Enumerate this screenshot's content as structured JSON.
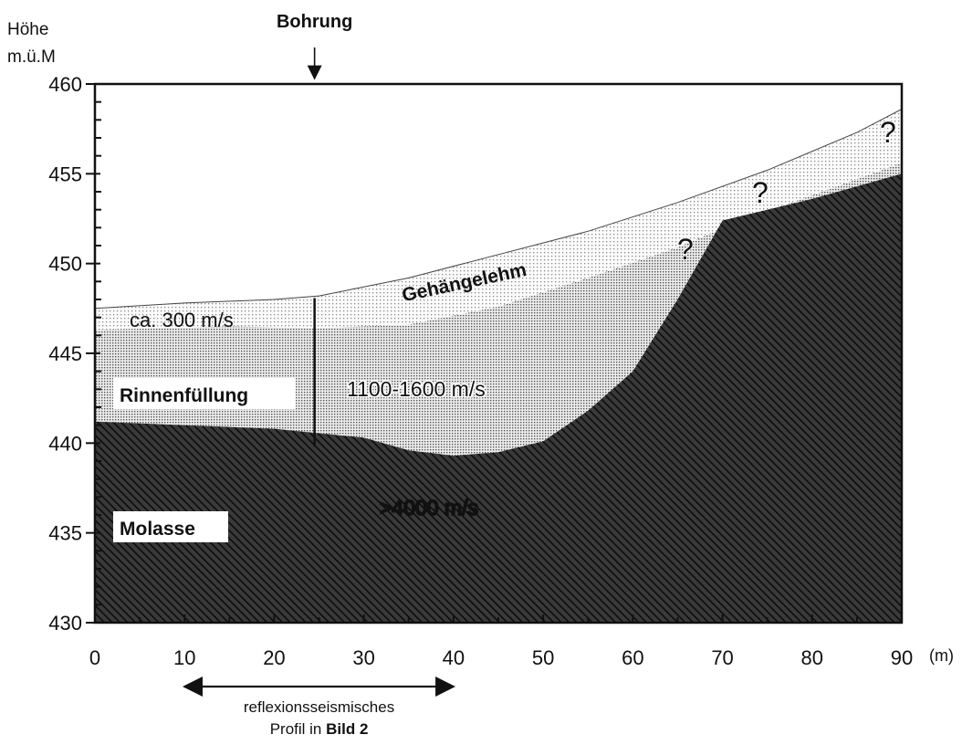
{
  "figure": {
    "y_title_line1": "Höhe",
    "y_title_line2": "m.ü.M",
    "x_unit": "(m)",
    "borehole_label": "Bohrung",
    "borehole_x": 24.5,
    "borehole_depth_bottom": 439.8,
    "colors": {
      "background": "#ffffff",
      "stroke": "#111111",
      "hatch": "#1a1a1a",
      "stipple_light": "#9a9a9a",
      "stipple_dark": "#555555"
    }
  },
  "chart_data": {
    "type": "cross-section",
    "xlim": [
      0,
      90
    ],
    "ylim": [
      430,
      460
    ],
    "x_ticks": [
      "0",
      "10",
      "20",
      "30",
      "40",
      "50",
      "60",
      "70",
      "80",
      "90"
    ],
    "y_ticks": [
      "430",
      "435",
      "440",
      "445",
      "450",
      "455",
      "460"
    ],
    "surfaces": {
      "ground": [
        [
          0,
          447.5
        ],
        [
          10,
          447.8
        ],
        [
          20,
          448.0
        ],
        [
          25,
          448.2
        ],
        [
          35,
          449.2
        ],
        [
          45,
          450.5
        ],
        [
          55,
          451.8
        ],
        [
          65,
          453.4
        ],
        [
          75,
          455.2
        ],
        [
          85,
          457.3
        ],
        [
          90,
          458.6
        ]
      ],
      "loam_base": [
        [
          0,
          446.3
        ],
        [
          15,
          446.5
        ],
        [
          25,
          446.4
        ],
        [
          35,
          446.6
        ],
        [
          45,
          447.6
        ],
        [
          55,
          449.2
        ],
        [
          65,
          450.9
        ],
        [
          72,
          452.4
        ],
        [
          80,
          453.8
        ],
        [
          90,
          455.6
        ]
      ],
      "molasse_top": [
        [
          0,
          441.2
        ],
        [
          10,
          441.0
        ],
        [
          20,
          440.8
        ],
        [
          30,
          440.3
        ],
        [
          35,
          439.6
        ],
        [
          40,
          439.3
        ],
        [
          45,
          439.5
        ],
        [
          50,
          440.1
        ],
        [
          55,
          441.8
        ],
        [
          60,
          444.0
        ],
        [
          65,
          448.0
        ],
        [
          70,
          452.4
        ],
        [
          75,
          453.0
        ],
        [
          80,
          453.6
        ],
        [
          85,
          454.3
        ],
        [
          90,
          455.0
        ]
      ]
    },
    "annotations": {
      "loam_label": "Gehängelehm",
      "loam_velocity": "ca. 300 m/s",
      "fill_label": "Rinnenfüllung",
      "fill_velocity": "1100-1600 m/s",
      "molasse_label": "Molasse",
      "molasse_velocity": ">4000 m/s",
      "uncertain_marks": [
        "?",
        "?",
        "?"
      ]
    },
    "profile_range": [
      10,
      40
    ],
    "profile_label_line1": "reflexionsseismisches",
    "profile_label_line2_prefix": "Profil in ",
    "profile_label_line2_bold": "Bild 2"
  }
}
